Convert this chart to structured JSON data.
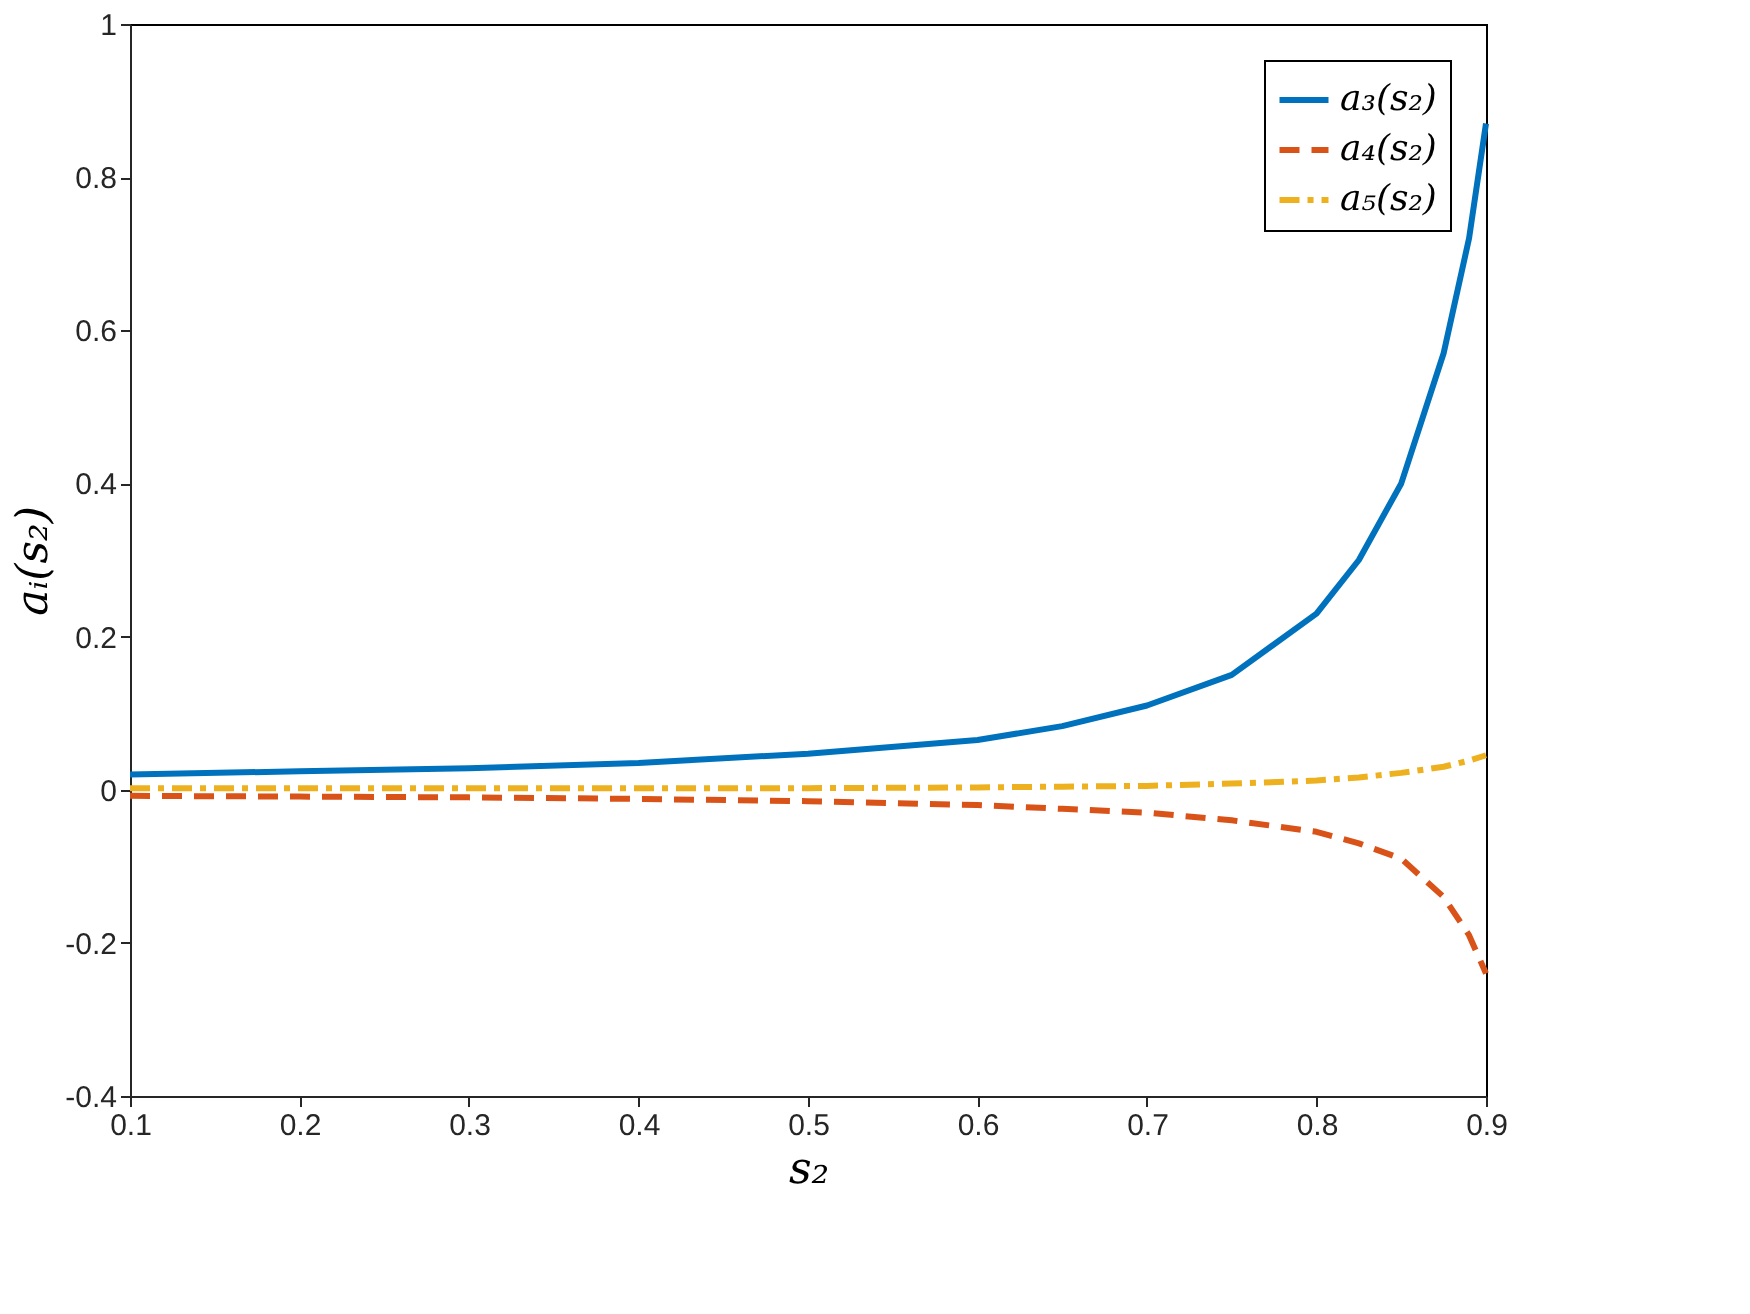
{
  "chart_data": {
    "type": "line",
    "xlabel": "s₂",
    "ylabel": "aᵢ(s₂)",
    "x": [
      0.1,
      0.2,
      0.3,
      0.4,
      0.5,
      0.6,
      0.65,
      0.7,
      0.75,
      0.8,
      0.825,
      0.85,
      0.875,
      0.89,
      0.9
    ],
    "series": [
      {
        "name": "a₃(s₂)",
        "color": "#0072bd",
        "line_style": "solid",
        "values": [
          0.02,
          0.024,
          0.028,
          0.035,
          0.047,
          0.065,
          0.083,
          0.11,
          0.15,
          0.23,
          0.3,
          0.4,
          0.57,
          0.72,
          0.87
        ]
      },
      {
        "name": "a₄(s₂)",
        "color": "#d95319",
        "line_style": "dashed",
        "values": [
          -0.008,
          -0.009,
          -0.01,
          -0.012,
          -0.015,
          -0.02,
          -0.025,
          -0.03,
          -0.04,
          -0.055,
          -0.07,
          -0.09,
          -0.14,
          -0.19,
          -0.24
        ]
      },
      {
        "name": "a₅(s₂)",
        "color": "#edb120",
        "line_style": "dashdot",
        "values": [
          0.002,
          0.002,
          0.002,
          0.002,
          0.002,
          0.003,
          0.004,
          0.005,
          0.008,
          0.012,
          0.016,
          0.022,
          0.03,
          0.038,
          0.045
        ]
      }
    ],
    "xlim": [
      0.1,
      0.9
    ],
    "xticks": [
      0.1,
      0.2,
      0.3,
      0.4,
      0.5,
      0.6,
      0.7,
      0.8,
      0.9
    ],
    "ylim": [
      -0.4,
      1
    ],
    "yticks": [
      -0.4,
      -0.2,
      0,
      0.2,
      0.4,
      0.6,
      0.8,
      1
    ],
    "grid": false,
    "legend": "top right"
  }
}
